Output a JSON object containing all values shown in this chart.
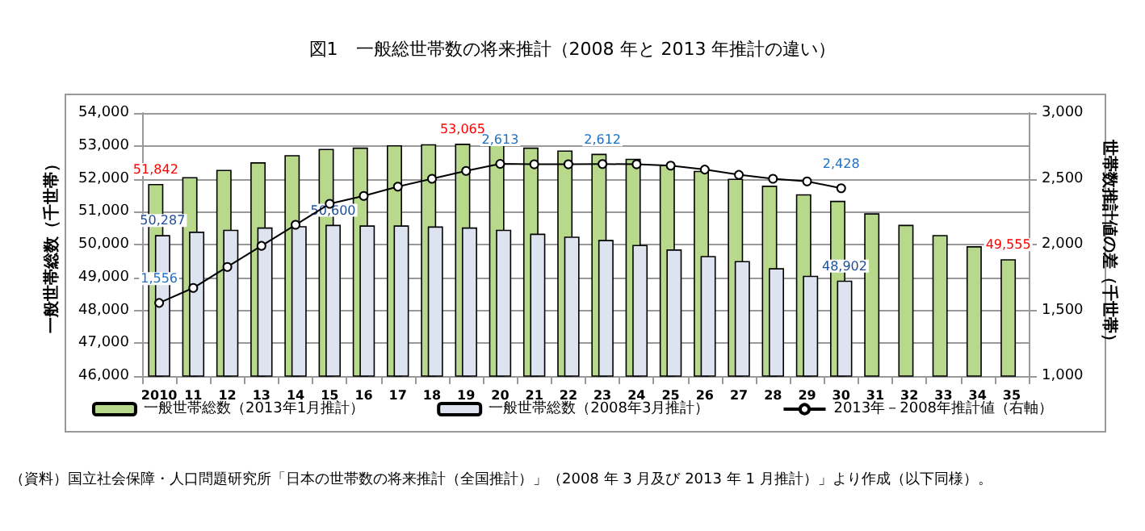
{
  "chart_data": {
    "type": "bar",
    "title": "図1　一般総世帯数の将来推計（2008 年と 2013 年推計の違い）",
    "ylabel": "一般世帯総数（千世帯）",
    "y2label": "世帯数推計値の差（千世帯）",
    "categories": [
      "2010",
      "11",
      "12",
      "13",
      "14",
      "15",
      "16",
      "17",
      "18",
      "19",
      "20",
      "21",
      "22",
      "23",
      "24",
      "25",
      "26",
      "27",
      "28",
      "29",
      "30",
      "31",
      "32",
      "33",
      "34",
      "35"
    ],
    "series": [
      {
        "name": "一般世帯総数（2013年1月推計）",
        "color": "#b8d98c",
        "values": [
          51842,
          52050,
          52270,
          52500,
          52720,
          52910,
          52950,
          53020,
          53050,
          53065,
          53050,
          52950,
          52860,
          52760,
          52610,
          52420,
          52240,
          52000,
          51790,
          51530,
          51330,
          50950,
          50600,
          50290,
          49950,
          49555
        ],
        "value_labels": [
          "51,842",
          null,
          null,
          null,
          null,
          null,
          null,
          null,
          null,
          "53,065",
          null,
          null,
          null,
          null,
          null,
          null,
          null,
          null,
          null,
          null,
          null,
          null,
          null,
          null,
          null,
          "49,555"
        ]
      },
      {
        "name": "一般世帯総数（2008年3月推計）",
        "color": "#dde4f0",
        "values": [
          50287,
          50390,
          50450,
          50520,
          50560,
          50600,
          50580,
          50580,
          50550,
          50520,
          50450,
          50330,
          50240,
          50140,
          49990,
          49850,
          49650,
          49500,
          49280,
          49050,
          48902,
          null,
          null,
          null,
          null,
          null
        ],
        "value_labels": [
          "50,287",
          null,
          null,
          null,
          null,
          "50,600",
          null,
          null,
          null,
          null,
          null,
          null,
          null,
          null,
          null,
          null,
          null,
          null,
          null,
          null,
          "48,902",
          null,
          null,
          null,
          null,
          null
        ]
      },
      {
        "name": "2013年－2008年推計値（右軸）",
        "type": "line",
        "axis": "y2",
        "color": "#000000",
        "values": [
          1556,
          1670,
          1830,
          1990,
          2150,
          2310,
          2370,
          2440,
          2500,
          2560,
          2613,
          2610,
          2610,
          2612,
          2610,
          2600,
          2570,
          2530,
          2500,
          2480,
          2428,
          null,
          null,
          null,
          null,
          null
        ],
        "value_labels": [
          "1,556",
          null,
          null,
          null,
          null,
          null,
          null,
          null,
          null,
          null,
          "2,613",
          null,
          null,
          "2,612",
          null,
          null,
          null,
          null,
          null,
          null,
          "2,428",
          null,
          null,
          null,
          null,
          null
        ]
      }
    ],
    "ylim": [
      46000,
      54000
    ],
    "yticks": [
      {
        "value": 46000,
        "label": "46,000"
      },
      {
        "value": 47000,
        "label": "47,000"
      },
      {
        "value": 48000,
        "label": "48,000"
      },
      {
        "value": 49000,
        "label": "49,000"
      },
      {
        "value": 50000,
        "label": "50,000"
      },
      {
        "value": 51000,
        "label": "51,000"
      },
      {
        "value": 52000,
        "label": "52,000"
      },
      {
        "value": 53000,
        "label": "53,000"
      },
      {
        "value": 54000,
        "label": "54,000"
      }
    ],
    "y2lim": [
      1000,
      3000
    ],
    "y2ticks": [
      {
        "value": 1000,
        "label": "1,000"
      },
      {
        "value": 1500,
        "label": "1,500"
      },
      {
        "value": 2000,
        "label": "2,000"
      },
      {
        "value": 2500,
        "label": "2,500"
      },
      {
        "value": 3000,
        "label": "3,000"
      }
    ],
    "grid": "y",
    "legend": "bottom",
    "marker": "circle",
    "line_style": "solid",
    "annotations": [
      "（資料）国立社会保障・人口問題研究所「日本の世帯数の将来推計（全国推計）」（2008 年 3 月及び 2013 年 1 月推計）」より作成（以下同様）。"
    ]
  }
}
